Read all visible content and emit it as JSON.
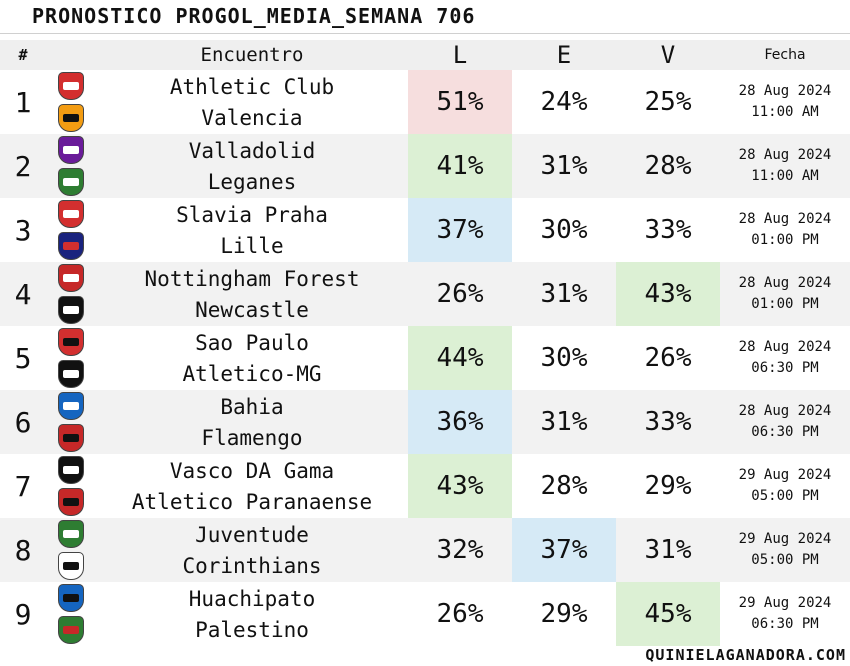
{
  "title": "PRONOSTICO PROGOL_MEDIA_SEMANA 706",
  "header": {
    "num": "#",
    "match": "Encuentro",
    "l": "L",
    "e": "E",
    "v": "V",
    "date": "Fecha"
  },
  "colors": {
    "red": "#f6dede",
    "green": "#dcf0d4",
    "blue": "#d6eaf6",
    "alt_row": "#f2f2f2"
  },
  "rows": [
    {
      "num": "1",
      "home": "Athletic Club",
      "away": "Valencia",
      "l": "51%",
      "e": "24%",
      "v": "25%",
      "date": "28 Aug 2024",
      "time": "11:00 AM",
      "hl": "l",
      "hl_color": "#f6dede",
      "home_crest": {
        "c1": "#d32f2f",
        "c2": "#ffffff"
      },
      "away_crest": {
        "c1": "#f39c12",
        "c2": "#111111"
      }
    },
    {
      "num": "2",
      "home": "Valladolid",
      "away": "Leganes",
      "l": "41%",
      "e": "31%",
      "v": "28%",
      "date": "28 Aug 2024",
      "time": "11:00 AM",
      "hl": "l",
      "hl_color": "#dcf0d4",
      "home_crest": {
        "c1": "#6a1b9a",
        "c2": "#ffffff"
      },
      "away_crest": {
        "c1": "#2e7d32",
        "c2": "#ffffff"
      }
    },
    {
      "num": "3",
      "home": "Slavia Praha",
      "away": "Lille",
      "l": "37%",
      "e": "30%",
      "v": "33%",
      "date": "28 Aug 2024",
      "time": "01:00 PM",
      "hl": "l",
      "hl_color": "#d6eaf6",
      "home_crest": {
        "c1": "#d32f2f",
        "c2": "#ffffff"
      },
      "away_crest": {
        "c1": "#1a237e",
        "c2": "#d32f2f"
      }
    },
    {
      "num": "4",
      "home": "Nottingham Forest",
      "away": "Newcastle",
      "l": "26%",
      "e": "31%",
      "v": "43%",
      "date": "28 Aug 2024",
      "time": "01:00 PM",
      "hl": "v",
      "hl_color": "#dcf0d4",
      "home_crest": {
        "c1": "#c62828",
        "c2": "#ffffff"
      },
      "away_crest": {
        "c1": "#111111",
        "c2": "#ffffff"
      }
    },
    {
      "num": "5",
      "home": "Sao Paulo",
      "away": "Atletico-MG",
      "l": "44%",
      "e": "30%",
      "v": "26%",
      "date": "28 Aug 2024",
      "time": "06:30 PM",
      "hl": "l",
      "hl_color": "#dcf0d4",
      "home_crest": {
        "c1": "#d32f2f",
        "c2": "#111111"
      },
      "away_crest": {
        "c1": "#111111",
        "c2": "#ffffff"
      }
    },
    {
      "num": "6",
      "home": "Bahia",
      "away": "Flamengo",
      "l": "36%",
      "e": "31%",
      "v": "33%",
      "date": "28 Aug 2024",
      "time": "06:30 PM",
      "hl": "l",
      "hl_color": "#d6eaf6",
      "home_crest": {
        "c1": "#1565c0",
        "c2": "#ffffff"
      },
      "away_crest": {
        "c1": "#c62828",
        "c2": "#111111"
      }
    },
    {
      "num": "7",
      "home": "Vasco DA Gama",
      "away": "Atletico Paranaense",
      "l": "43%",
      "e": "28%",
      "v": "29%",
      "date": "29 Aug 2024",
      "time": "05:00 PM",
      "hl": "l",
      "hl_color": "#dcf0d4",
      "home_crest": {
        "c1": "#111111",
        "c2": "#ffffff"
      },
      "away_crest": {
        "c1": "#c62828",
        "c2": "#111111"
      }
    },
    {
      "num": "8",
      "home": "Juventude",
      "away": "Corinthians",
      "l": "32%",
      "e": "37%",
      "v": "31%",
      "date": "29 Aug 2024",
      "time": "05:00 PM",
      "hl": "e",
      "hl_color": "#d6eaf6",
      "home_crest": {
        "c1": "#2e7d32",
        "c2": "#ffffff"
      },
      "away_crest": {
        "c1": "#ffffff",
        "c2": "#111111"
      }
    },
    {
      "num": "9",
      "home": "Huachipato",
      "away": "Palestino",
      "l": "26%",
      "e": "29%",
      "v": "45%",
      "date": "29 Aug 2024",
      "time": "06:30 PM",
      "hl": "v",
      "hl_color": "#dcf0d4",
      "home_crest": {
        "c1": "#1565c0",
        "c2": "#111111"
      },
      "away_crest": {
        "c1": "#2e7d32",
        "c2": "#c62828"
      }
    }
  ],
  "footer": "QUINIELAGANADORA.COM"
}
